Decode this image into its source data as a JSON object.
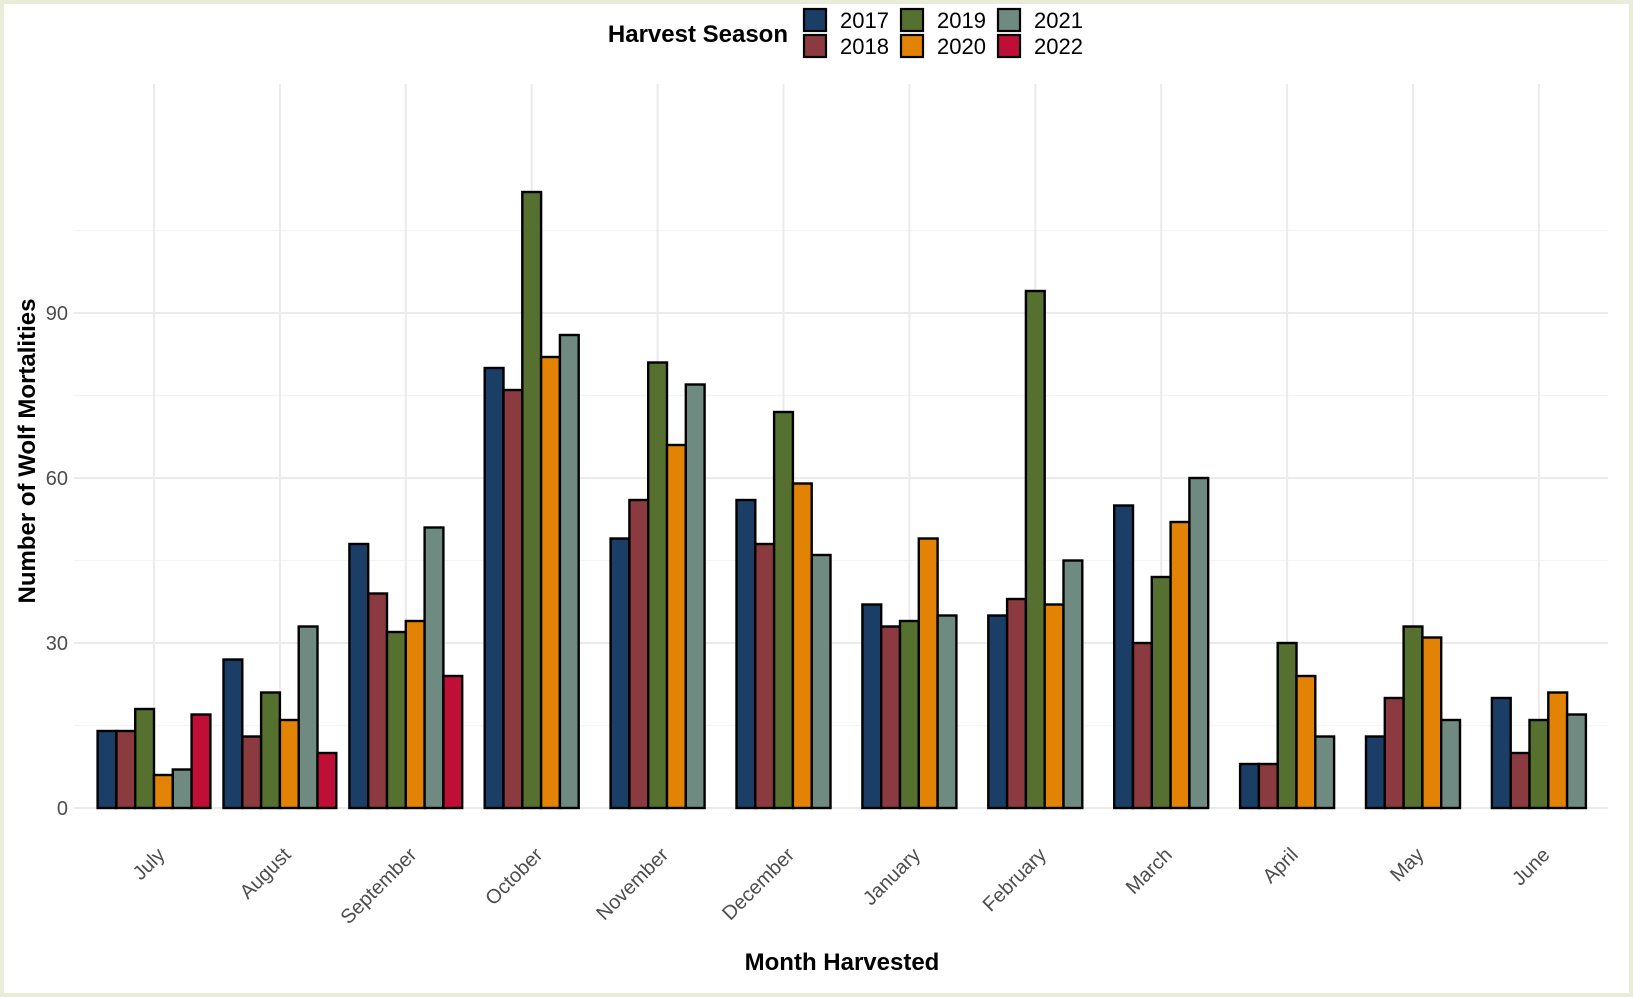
{
  "chart_data": {
    "type": "bar",
    "xlabel": "Month Harvested",
    "ylabel": "Number of Wolf Mortalities",
    "legend_title": "Harvest Season",
    "legend_position": "top",
    "grid": true,
    "ylim": [
      0,
      115
    ],
    "yticks": [
      0,
      30,
      60,
      90
    ],
    "categories": [
      "July",
      "August",
      "September",
      "October",
      "November",
      "December",
      "January",
      "February",
      "March",
      "April",
      "May",
      "June"
    ],
    "series": [
      {
        "name": "2017",
        "color": "#1a3e66",
        "values": [
          14,
          27,
          48,
          80,
          49,
          56,
          37,
          35,
          55,
          8,
          13,
          20
        ]
      },
      {
        "name": "2018",
        "color": "#8b3a3f",
        "values": [
          14,
          13,
          39,
          76,
          56,
          48,
          33,
          38,
          30,
          8,
          20,
          10
        ]
      },
      {
        "name": "2019",
        "color": "#55702f",
        "values": [
          18,
          21,
          32,
          112,
          81,
          72,
          34,
          94,
          42,
          30,
          33,
          16
        ]
      },
      {
        "name": "2020",
        "color": "#e38305",
        "values": [
          6,
          16,
          34,
          82,
          66,
          59,
          49,
          37,
          52,
          24,
          31,
          21
        ]
      },
      {
        "name": "2021",
        "color": "#6f8a80",
        "values": [
          7,
          33,
          51,
          86,
          77,
          46,
          35,
          45,
          60,
          13,
          16,
          17
        ]
      },
      {
        "name": "2022",
        "color": "#c00f37",
        "values": [
          17,
          10,
          24,
          null,
          null,
          null,
          null,
          null,
          null,
          null,
          null,
          null
        ]
      }
    ]
  }
}
